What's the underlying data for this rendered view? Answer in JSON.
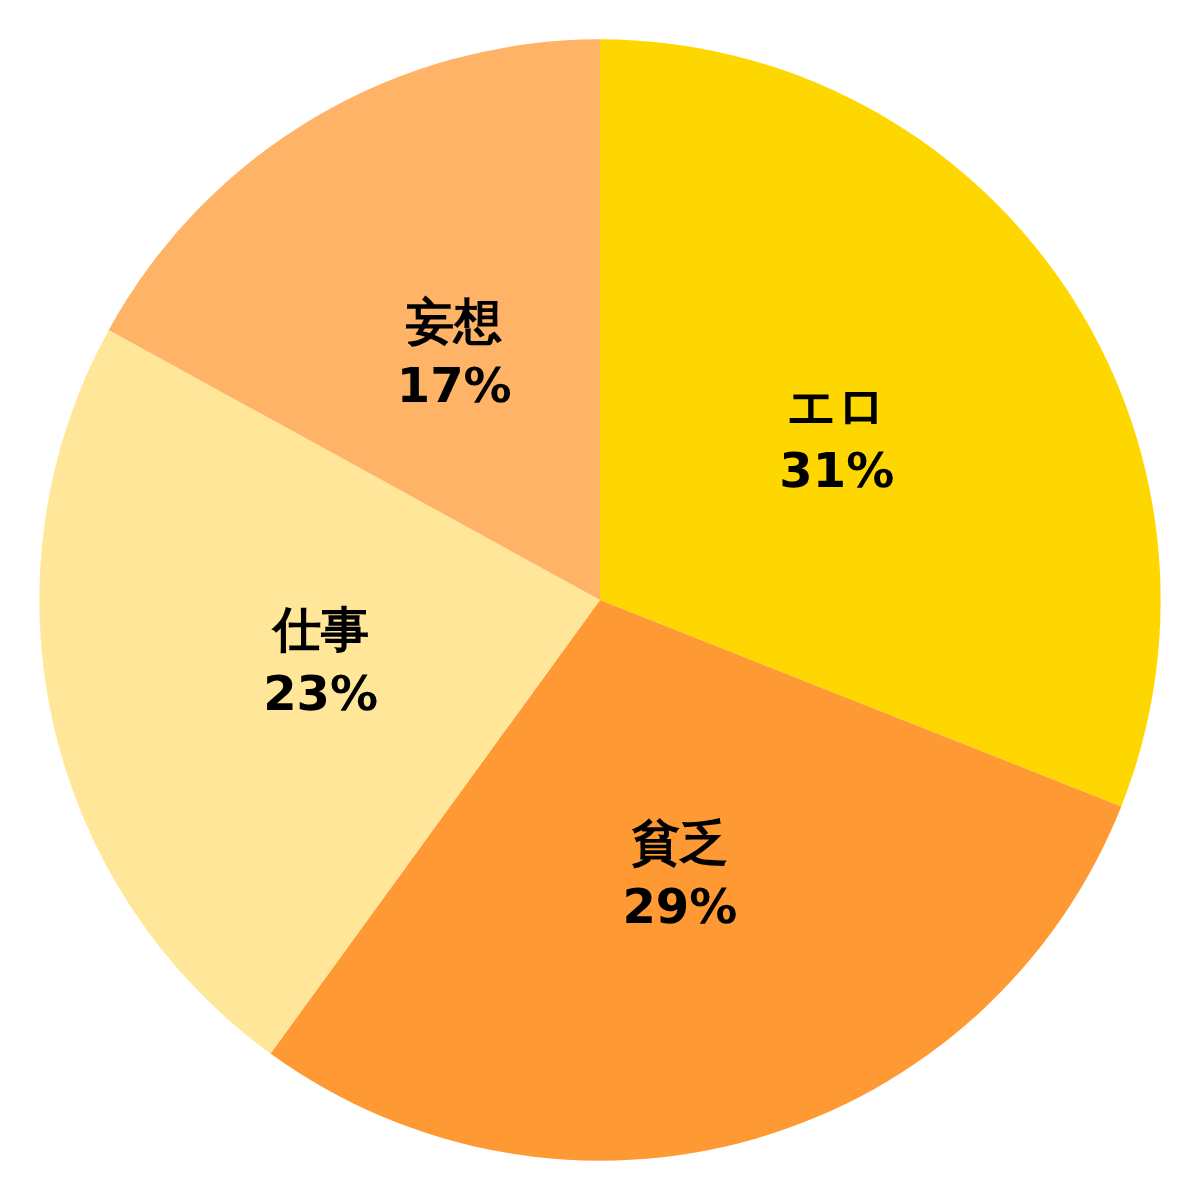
{
  "chart_data": {
    "type": "pie",
    "categories": [
      "エロ",
      "貧乏",
      "仕事",
      "妄想"
    ],
    "values": [
      31,
      29,
      23,
      17
    ],
    "value_labels": [
      "31%",
      "29%",
      "23%",
      "17%"
    ],
    "colors": [
      "#ffd700",
      "#ff9933",
      "#ffe699",
      "#ffb366"
    ],
    "legend": false
  }
}
